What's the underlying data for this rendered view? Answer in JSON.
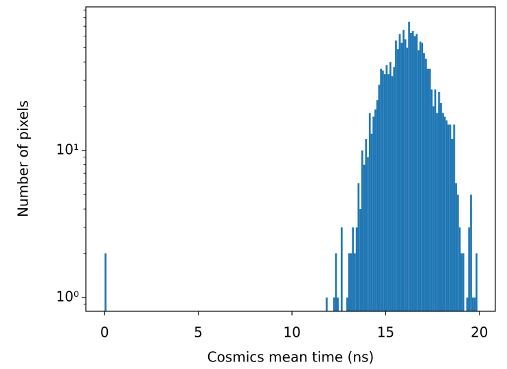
{
  "chart_data": {
    "type": "histogram",
    "xlabel": "Cosmics mean time (ns)",
    "ylabel": "Number of pixels",
    "color": "#1f77b4",
    "log_y": true,
    "xlim": [
      -1,
      20.85
    ],
    "ylim": [
      0.806,
      94.8
    ],
    "xticks": [
      0,
      5,
      10,
      15,
      20
    ],
    "yticks": [
      {
        "value": 1,
        "label": "10⁰"
      },
      {
        "value": 10,
        "label": "10¹"
      }
    ],
    "yticks_minor": [
      0.9,
      2,
      3,
      4,
      5,
      6,
      7,
      8,
      9,
      20,
      30,
      40,
      50,
      60,
      70,
      80,
      90
    ],
    "bins": [
      0,
      0.1,
      0.2,
      0.3,
      0.4,
      0.5,
      0.6,
      0.7,
      0.8,
      0.9,
      1,
      1.1,
      1.2,
      1.3,
      1.4,
      1.5,
      1.6,
      1.7,
      1.8,
      1.9,
      2,
      2.1,
      2.2,
      2.3,
      2.4,
      2.5,
      2.6,
      2.7,
      2.8,
      2.9,
      3,
      3.1,
      3.2,
      3.3,
      3.4,
      3.5,
      3.6,
      3.7,
      3.8,
      3.9,
      4,
      4.1,
      4.2,
      4.3,
      4.4,
      4.5,
      4.6,
      4.7,
      4.8,
      4.9,
      5,
      5.1,
      5.2,
      5.3,
      5.4,
      5.5,
      5.6,
      5.7,
      5.8,
      5.9,
      6,
      6.1,
      6.2,
      6.3,
      6.4,
      6.5,
      6.6,
      6.7,
      6.8,
      6.9,
      7,
      7.1,
      7.2,
      7.3,
      7.4,
      7.5,
      7.6,
      7.7,
      7.8,
      7.9,
      8,
      8.1,
      8.2,
      8.3,
      8.4,
      8.5,
      8.6,
      8.7,
      8.8,
      8.9,
      9,
      9.1,
      9.2,
      9.3,
      9.4,
      9.5,
      9.6,
      9.7,
      9.8,
      9.9,
      10,
      10.1,
      10.2,
      10.3,
      10.4,
      10.5,
      10.6,
      10.7,
      10.8,
      10.9,
      11,
      11.1,
      11.2,
      11.3,
      11.4,
      11.5,
      11.6,
      11.7,
      11.8,
      11.9,
      12,
      12.1,
      12.2,
      12.3,
      12.4,
      12.5,
      12.6,
      12.7,
      12.8,
      12.9,
      13,
      13.1,
      13.2,
      13.3,
      13.4,
      13.5,
      13.6,
      13.7,
      13.8,
      13.9,
      14,
      14.1,
      14.2,
      14.3,
      14.4,
      14.5,
      14.6,
      14.7,
      14.8,
      14.9,
      15,
      15.1,
      15.2,
      15.3,
      15.4,
      15.5,
      15.6,
      15.7,
      15.8,
      15.9,
      16,
      16.1,
      16.2,
      16.3,
      16.4,
      16.5,
      16.6,
      16.7,
      16.8,
      16.9,
      17,
      17.1,
      17.2,
      17.3,
      17.4,
      17.5,
      17.6,
      17.7,
      17.8,
      17.9,
      18,
      18.1,
      18.2,
      18.3,
      18.4,
      18.5,
      18.6,
      18.7,
      18.8,
      18.9,
      19,
      19.1,
      19.2,
      19.3,
      19.4,
      19.5,
      19.6,
      19.7,
      19.8,
      19.9,
      20
    ],
    "values": [
      2,
      0,
      0,
      0,
      0,
      0,
      0,
      0,
      0,
      0,
      0,
      0,
      0,
      0,
      0,
      0,
      0,
      0,
      0,
      0,
      0,
      0,
      0,
      0,
      0,
      0,
      0,
      0,
      0,
      0,
      0,
      0,
      0,
      0,
      0,
      0,
      0,
      0,
      0,
      0,
      0,
      0,
      0,
      0,
      0,
      0,
      0,
      0,
      0,
      0,
      0,
      0,
      0,
      0,
      0,
      0,
      0,
      0,
      0,
      0,
      0,
      0,
      0,
      0,
      0,
      0,
      0,
      0,
      0,
      0,
      0,
      0,
      0,
      0,
      0,
      0,
      0,
      0,
      0,
      0,
      0,
      0,
      0,
      0,
      0,
      0,
      0,
      0,
      0,
      0,
      0,
      0,
      0,
      0,
      0,
      0,
      0,
      0,
      0,
      0,
      0,
      0,
      0,
      0,
      0,
      0,
      0,
      0,
      0,
      0,
      0,
      0,
      0,
      0,
      0,
      0,
      0,
      0,
      1,
      0,
      0,
      0,
      1,
      2,
      1,
      0,
      3,
      0,
      0,
      1,
      2,
      2,
      3,
      2,
      3,
      6,
      4,
      10,
      8,
      12,
      9,
      18,
      13,
      17,
      19,
      22,
      28,
      36,
      35,
      33,
      38,
      33,
      40,
      32,
      37,
      56,
      49,
      62,
      54,
      66,
      57,
      50,
      75,
      63,
      65,
      60,
      62,
      48,
      55,
      54,
      46,
      42,
      36,
      36,
      26,
      20,
      26,
      18,
      25,
      21,
      18,
      17,
      16,
      15,
      15,
      12,
      15,
      6,
      5,
      3,
      2,
      2,
      0,
      1,
      3,
      5,
      1,
      1,
      2,
      0
    ]
  }
}
